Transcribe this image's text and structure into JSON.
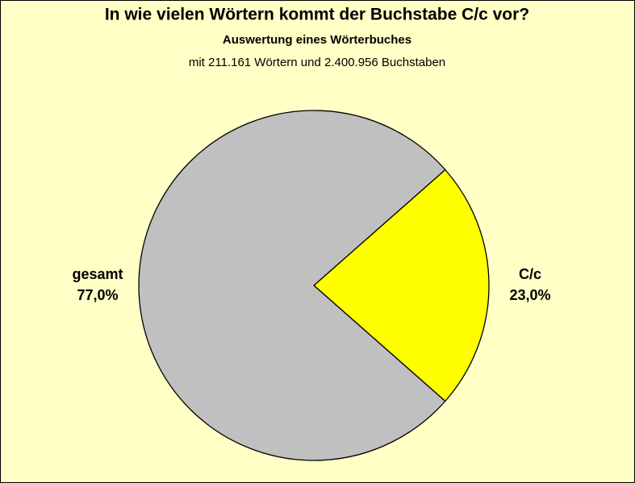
{
  "chart_data": {
    "type": "pie",
    "title": "In wie vielen Wörtern kommt der Buchstabe C/c vor?",
    "subtitle": "Auswertung eines Wörterbuches",
    "caption": "mit 211.161 Wörtern und 2.400.956 Buchstaben",
    "categories": [
      "C/c",
      "gesamt"
    ],
    "values": [
      23,
      77
    ],
    "value_labels": [
      "23,0%",
      "77,0%"
    ],
    "colors": [
      "#ffff00",
      "#c0c0c0"
    ]
  }
}
